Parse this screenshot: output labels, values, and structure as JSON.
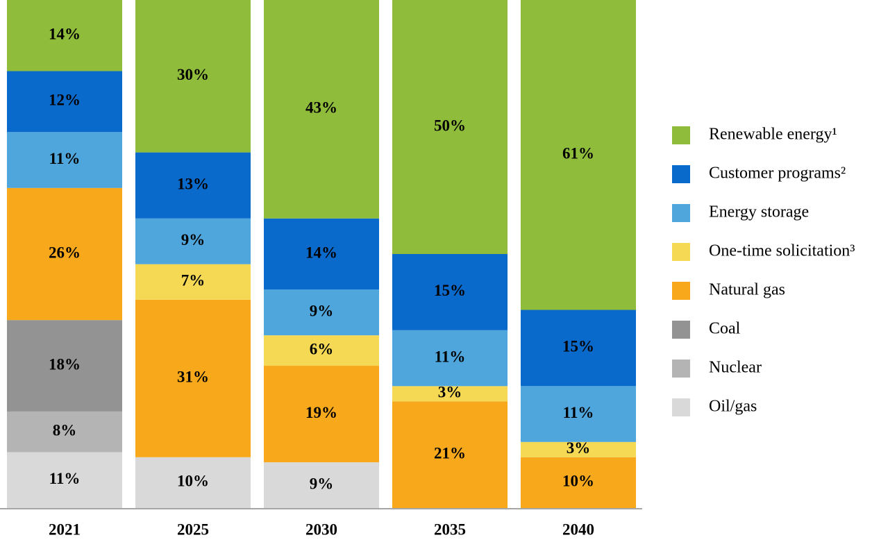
{
  "chart_data": {
    "type": "bar",
    "stacked": true,
    "categories": [
      "2021",
      "2025",
      "2030",
      "2035",
      "2040"
    ],
    "ylim": [
      0,
      100
    ],
    "legend": "right",
    "series": [
      {
        "name": "Oil/gas",
        "color": "#d9d9d9",
        "values": [
          11,
          10,
          9,
          null,
          null
        ],
        "value_labels": [
          "11%",
          "10%",
          "9%",
          null,
          null
        ]
      },
      {
        "name": "Nuclear",
        "color": "#b4b4b4",
        "values": [
          8,
          null,
          null,
          null,
          null
        ],
        "value_labels": [
          "8%",
          null,
          null,
          null,
          null
        ]
      },
      {
        "name": "Coal",
        "color": "#939393",
        "values": [
          18,
          null,
          null,
          null,
          null
        ],
        "value_labels": [
          "18%",
          null,
          null,
          null,
          null
        ]
      },
      {
        "name": "Natural gas",
        "color": "#f8a81b",
        "values": [
          26,
          31,
          19,
          21,
          10
        ],
        "value_labels": [
          "26%",
          "31%",
          "19%",
          "21%",
          "10%"
        ]
      },
      {
        "name": "One-time solicitation³",
        "color": "#f5d955",
        "values": [
          null,
          7,
          6,
          3,
          3
        ],
        "value_labels": [
          null,
          "7%",
          "6%",
          "3%",
          "3%"
        ]
      },
      {
        "name": "Energy storage",
        "color": "#4ea6dc",
        "values": [
          11,
          9,
          9,
          11,
          11
        ],
        "value_labels": [
          "11%",
          "9%",
          "9%",
          "11%",
          "11%"
        ]
      },
      {
        "name": "Customer programs²",
        "color": "#0a6acb",
        "values": [
          12,
          13,
          14,
          15,
          15
        ],
        "value_labels": [
          "12%",
          "13%",
          "14%",
          "15%",
          "15%"
        ]
      },
      {
        "name": "Renewable energy¹",
        "color": "#8fbc3a",
        "values": [
          14,
          30,
          43,
          50,
          61
        ],
        "value_labels": [
          "14%",
          "30%",
          "43%",
          "50%",
          "61%"
        ]
      }
    ]
  }
}
